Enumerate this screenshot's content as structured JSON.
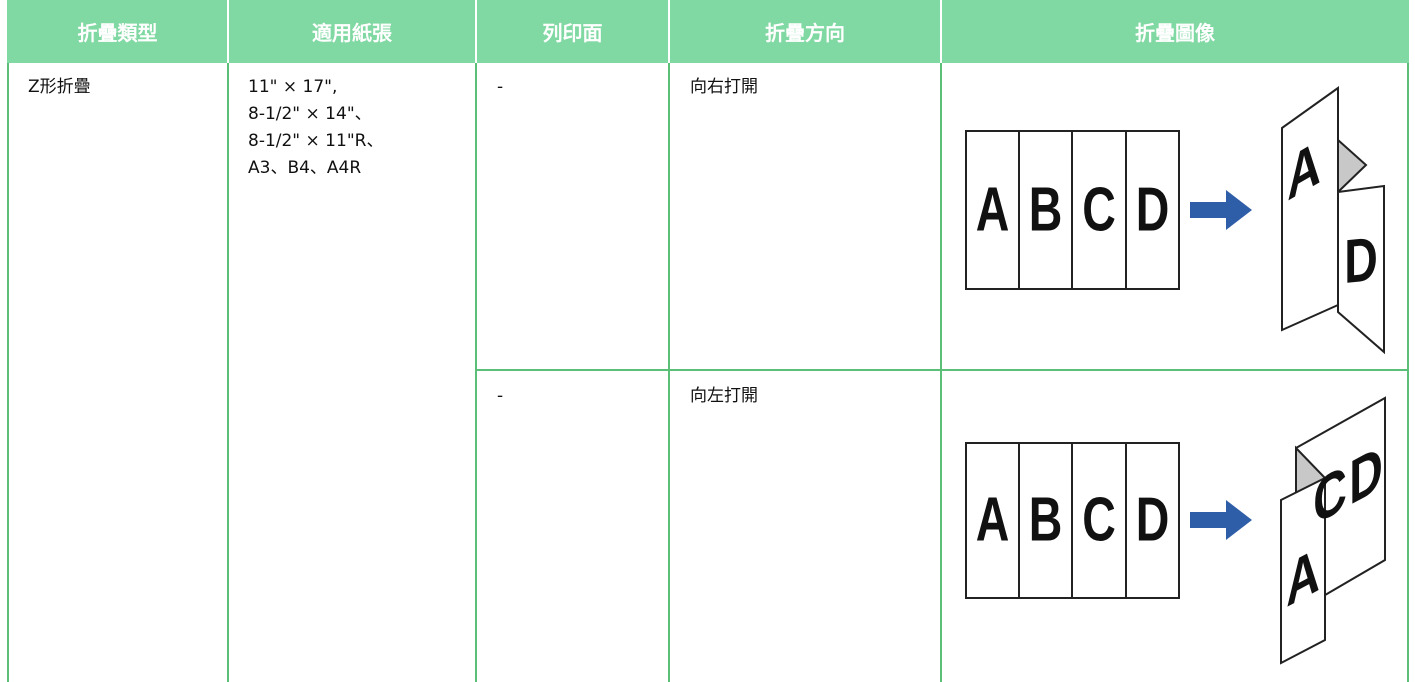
{
  "table": {
    "header": [
      "折疊類型",
      "適用紙張",
      "列印面",
      "折疊方向",
      "折疊圖像"
    ],
    "rows": [
      [
        "Z形折疊",
        [
          "11\" × 17\",",
          "8-1/2\" × 14\"、",
          "8-1/2\" × 11\"R、",
          "A3、B4、A4R"
        ],
        "-",
        "向右打開"
      ],
      [
        "-",
        "向左打開"
      ]
    ]
  },
  "illustration": {
    "letters": [
      "A",
      "B",
      "C",
      "D"
    ]
  }
}
